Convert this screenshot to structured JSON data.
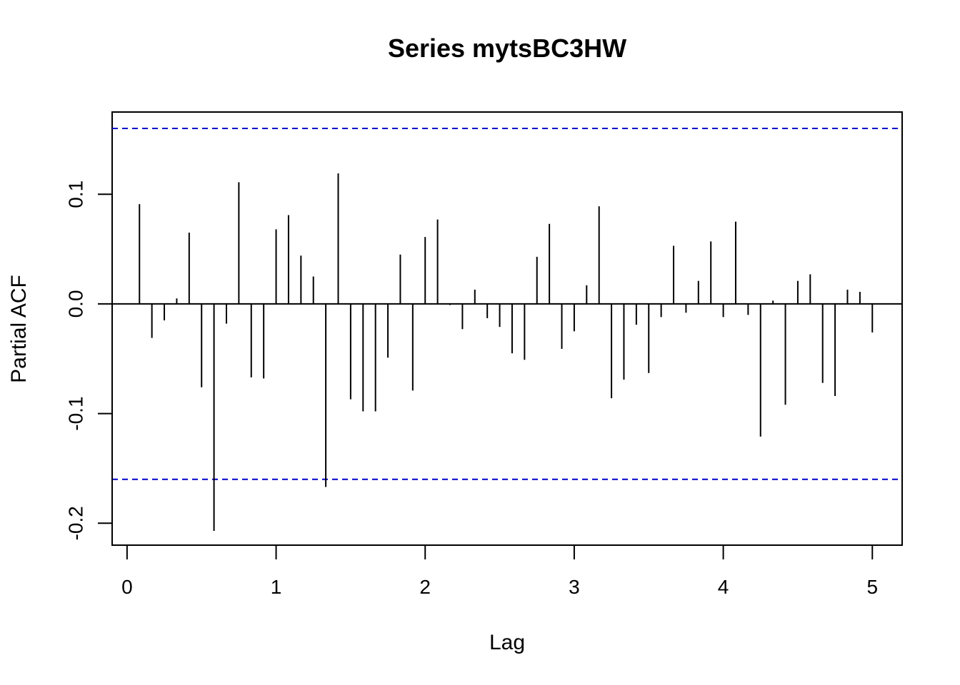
{
  "chart_data": {
    "type": "bar",
    "title": "Series  mytsBC3HW",
    "xlabel": "Lag",
    "ylabel": "Partial ACF",
    "xlim": [
      -0.1,
      5.2
    ],
    "ylim": [
      -0.22,
      0.175
    ],
    "x_ticks": [
      "0",
      "1",
      "2",
      "3",
      "4",
      "5"
    ],
    "y_ticks": [
      "-0.2",
      "-0.1",
      "0.0",
      "0.1"
    ],
    "confidence_bounds": [
      0.16,
      -0.16
    ],
    "confidence_color": "#0000cc",
    "series": [
      {
        "x": [
          0.0833,
          0.1667,
          0.25,
          0.3333,
          0.4167,
          0.5,
          0.5833,
          0.6667,
          0.75,
          0.8333,
          0.9167,
          1.0,
          1.0833,
          1.1667,
          1.25,
          1.3333,
          1.4167,
          1.5,
          1.5833,
          1.6667,
          1.75,
          1.8333,
          1.9167,
          2.0,
          2.0833,
          2.1667,
          2.25,
          2.3333,
          2.4167,
          2.5,
          2.5833,
          2.6667,
          2.75,
          2.8333,
          2.9167,
          3.0,
          3.0833,
          3.1667,
          3.25,
          3.3333,
          3.4167,
          3.5,
          3.5833,
          3.6667,
          3.75,
          3.8333,
          3.9167,
          4.0,
          4.0833,
          4.1667,
          4.25,
          4.3333,
          4.4167,
          4.5,
          4.5833,
          4.6667,
          4.75,
          4.8333,
          4.9167,
          5.0
        ],
        "values": [
          0.091,
          -0.031,
          -0.015,
          0.005,
          0.065,
          -0.076,
          -0.207,
          -0.018,
          0.111,
          -0.067,
          -0.068,
          0.068,
          0.081,
          0.044,
          0.025,
          -0.167,
          0.119,
          -0.087,
          -0.098,
          -0.098,
          -0.049,
          0.045,
          -0.079,
          0.061,
          0.077,
          -0.001,
          -0.023,
          0.013,
          -0.013,
          -0.021,
          -0.045,
          -0.051,
          0.043,
          0.073,
          -0.041,
          -0.025,
          0.017,
          0.089,
          -0.086,
          -0.069,
          -0.019,
          -0.063,
          -0.012,
          0.053,
          -0.008,
          0.021,
          0.057,
          -0.012,
          0.075,
          -0.01,
          -0.121,
          0.003,
          -0.092,
          0.021,
          0.027,
          -0.072,
          -0.084,
          0.013,
          0.011,
          -0.026
        ]
      }
    ]
  }
}
